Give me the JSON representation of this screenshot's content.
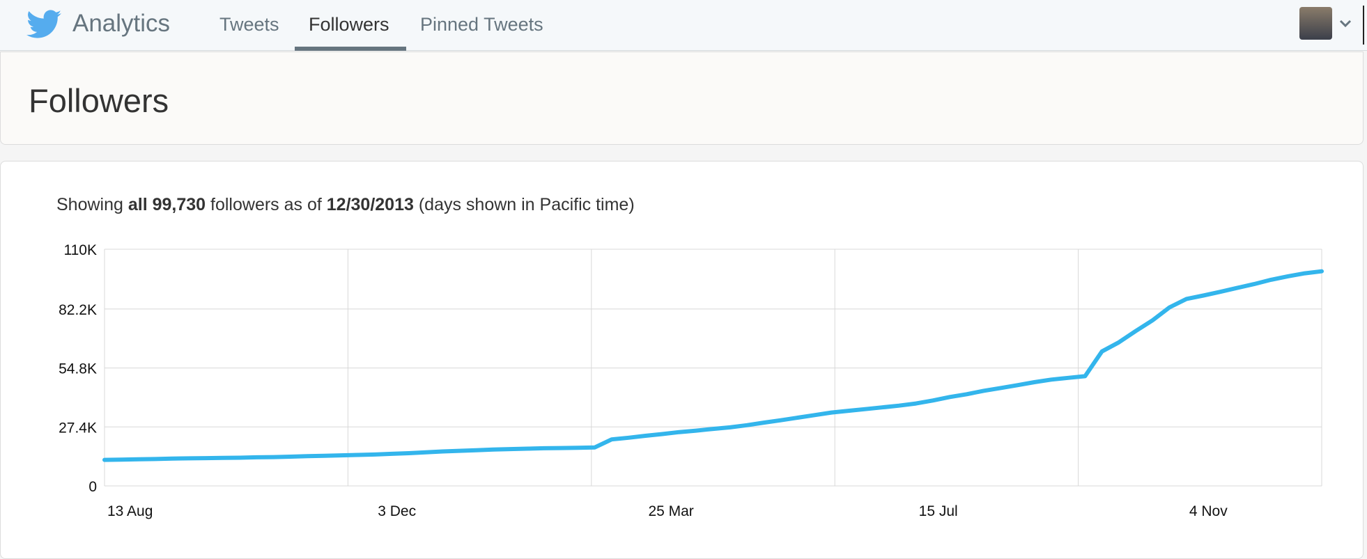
{
  "nav": {
    "brand": "Analytics",
    "tabs": [
      "Tweets",
      "Followers",
      "Pinned Tweets"
    ]
  },
  "header": {
    "title": "Followers"
  },
  "summary": [
    "Showing ",
    "all 99,730",
    " followers as of ",
    "12/30/2013",
    " (days shown in Pacific time)"
  ],
  "chart_data": {
    "type": "line",
    "categories": [
      "13 Aug",
      null,
      null,
      null,
      null,
      null,
      null,
      null,
      null,
      null,
      null,
      null,
      null,
      null,
      null,
      null,
      "3 Dec",
      null,
      null,
      null,
      null,
      null,
      null,
      null,
      null,
      null,
      null,
      null,
      null,
      null,
      null,
      null,
      "25 Mar",
      null,
      null,
      null,
      null,
      null,
      null,
      null,
      null,
      null,
      null,
      null,
      null,
      null,
      null,
      null,
      "15 Jul",
      null,
      null,
      null,
      null,
      null,
      null,
      null,
      null,
      null,
      null,
      null,
      null,
      null,
      null,
      null,
      "4 Nov",
      null,
      null,
      null,
      null,
      null,
      null,
      null,
      null
    ],
    "series": [
      {
        "name": "Followers",
        "color": "#33b5ec",
        "values": [
          12100,
          12200,
          12400,
          12500,
          12700,
          12800,
          12900,
          13000,
          13100,
          13300,
          13400,
          13600,
          13800,
          14000,
          14200,
          14400,
          14600,
          14900,
          15200,
          15600,
          16000,
          16300,
          16600,
          16900,
          17100,
          17300,
          17500,
          17600,
          17700,
          17900,
          21600,
          22400,
          23300,
          24100,
          25000,
          25700,
          26500,
          27200,
          28200,
          29400,
          30500,
          31700,
          32900,
          34100,
          34900,
          35700,
          36500,
          37300,
          38300,
          39700,
          41300,
          42600,
          44200,
          45500,
          46800,
          48200,
          49400,
          50200,
          51000,
          62500,
          66700,
          72000,
          77000,
          83000,
          86900,
          88500,
          90200,
          92000,
          93800,
          95800,
          97400,
          98800,
          99730
        ]
      }
    ],
    "ylim": [
      0,
      110000
    ],
    "yticks": [
      0,
      {
        "value": 27400,
        "label": "27.4K"
      },
      {
        "value": 54800,
        "label": "54.8K"
      },
      {
        "value": 82200,
        "label": "82.2K"
      },
      {
        "value": 110000,
        "label": "110K"
      }
    ],
    "grid": true
  }
}
